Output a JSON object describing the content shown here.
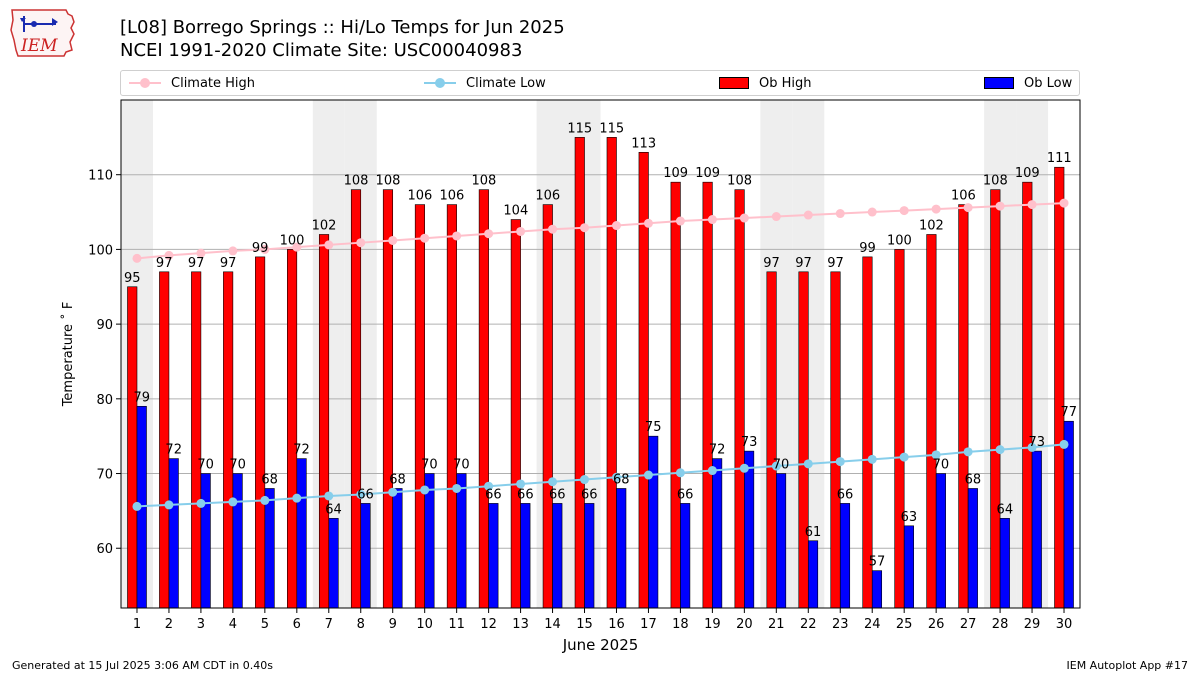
{
  "header": {
    "title_line1": "[L08] Borrego Springs :: Hi/Lo Temps for Jun 2025",
    "title_line2": "NCEI 1991-2020 Climate Site: USC00040983"
  },
  "logo": {
    "text": "IEM"
  },
  "legend": {
    "climate_high": "Climate High",
    "climate_low": "Climate Low",
    "ob_high": "Ob High",
    "ob_low": "Ob Low"
  },
  "footer": {
    "left": "Generated at 15 Jul 2025 3:06 AM CDT in 0.40s",
    "right": "IEM Autoplot App #17"
  },
  "colors": {
    "ob_high": "#ff0000",
    "ob_low": "#0000ff",
    "climate_high": "#ffc0cb",
    "climate_low": "#87ceeb",
    "weekend_shade": "#eeeeee",
    "grid": "#b0b0b0"
  },
  "chart_data": {
    "type": "bar",
    "xlabel": "June 2025",
    "ylabel": "Temperature ˚ F",
    "ylim": [
      52,
      120
    ],
    "yticks": [
      60,
      70,
      80,
      90,
      100,
      110
    ],
    "grid": "horizontal",
    "legend_position": "top",
    "categories": [
      "1",
      "2",
      "3",
      "4",
      "5",
      "6",
      "7",
      "8",
      "9",
      "10",
      "11",
      "12",
      "13",
      "14",
      "15",
      "16",
      "17",
      "18",
      "19",
      "20",
      "21",
      "22",
      "23",
      "24",
      "25",
      "26",
      "27",
      "28",
      "29",
      "30"
    ],
    "shaded_days": [
      "1",
      "7",
      "8",
      "14",
      "15",
      "21",
      "22",
      "28",
      "29"
    ],
    "series": [
      {
        "name": "Ob High",
        "kind": "bar",
        "values": [
          95,
          97,
          97,
          97,
          99,
          100,
          102,
          108,
          108,
          106,
          106,
          108,
          104,
          106,
          115,
          115,
          113,
          109,
          109,
          108,
          97,
          97,
          97,
          99,
          100,
          102,
          106,
          108,
          109,
          111
        ]
      },
      {
        "name": "Ob Low",
        "kind": "bar",
        "values": [
          79,
          72,
          70,
          70,
          68,
          72,
          64,
          66,
          68,
          70,
          70,
          66,
          66,
          66,
          66,
          68,
          75,
          66,
          72,
          73,
          70,
          61,
          66,
          57,
          63,
          70,
          68,
          64,
          73,
          77
        ]
      },
      {
        "name": "Climate High",
        "kind": "line",
        "values": [
          98.8,
          99.2,
          99.5,
          99.8,
          100.0,
          100.3,
          100.6,
          100.9,
          101.2,
          101.5,
          101.8,
          102.1,
          102.4,
          102.7,
          102.9,
          103.2,
          103.5,
          103.8,
          104.0,
          104.2,
          104.4,
          104.6,
          104.8,
          105.0,
          105.2,
          105.4,
          105.6,
          105.8,
          106.0,
          106.2
        ]
      },
      {
        "name": "Climate Low",
        "kind": "line",
        "values": [
          65.6,
          65.8,
          66.0,
          66.2,
          66.4,
          66.7,
          67.0,
          67.2,
          67.5,
          67.8,
          68.0,
          68.3,
          68.6,
          68.9,
          69.2,
          69.5,
          69.8,
          70.1,
          70.4,
          70.7,
          71.0,
          71.3,
          71.6,
          71.9,
          72.2,
          72.5,
          72.9,
          73.2,
          73.5,
          73.9
        ]
      }
    ]
  }
}
